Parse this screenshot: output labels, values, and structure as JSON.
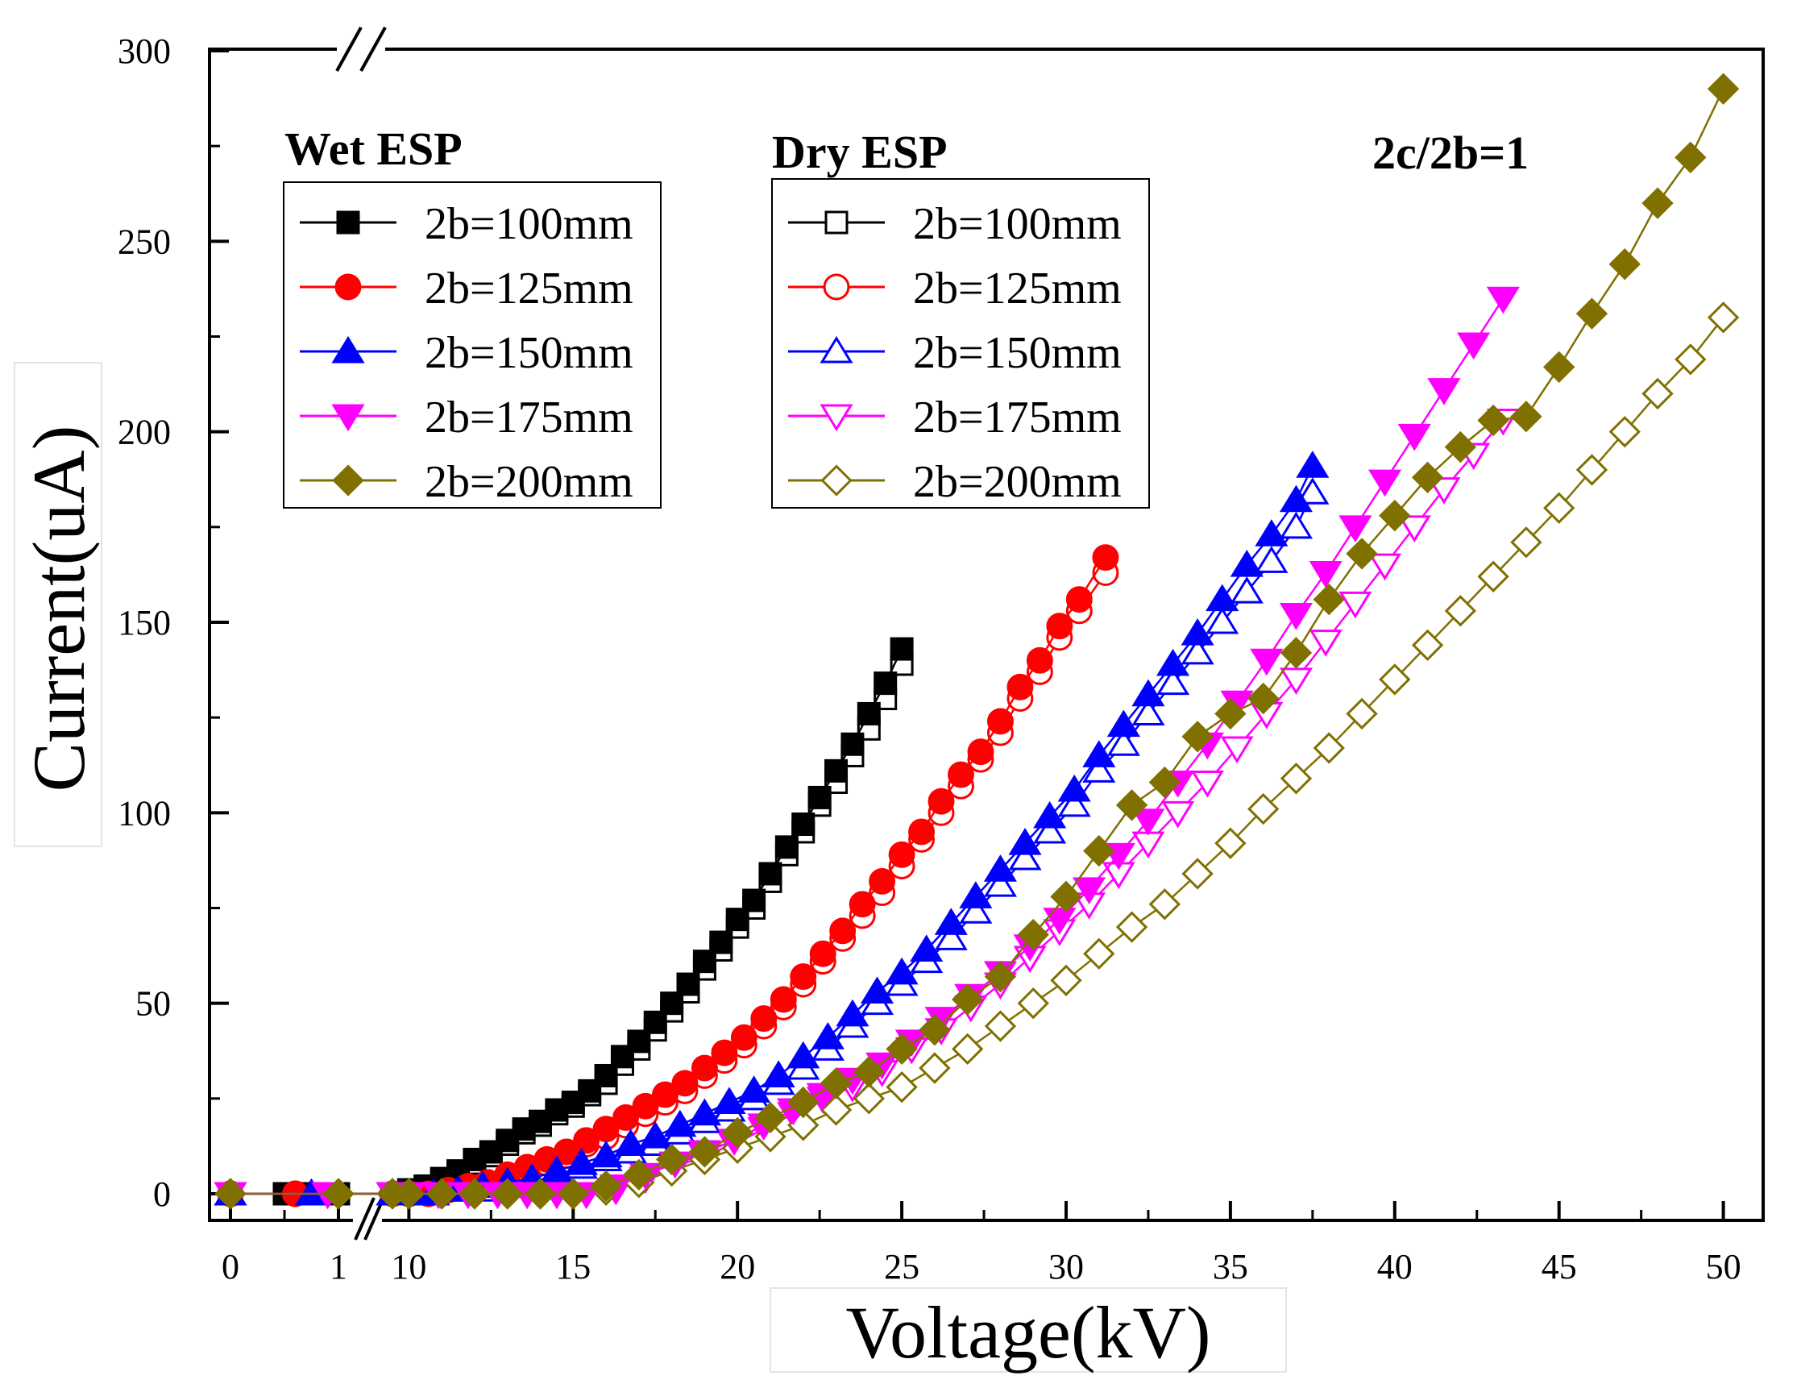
{
  "chart_data": {
    "type": "scatter",
    "title": "",
    "annotation": "2c/2b=1",
    "xlabel": "Voltage(kV)",
    "ylabel": "Current(uA)",
    "ylim": [
      0,
      300
    ],
    "xlim": [
      -0.1,
      51.5
    ],
    "x_axis_break": {
      "between": [
        1,
        10
      ],
      "style": "double-slash"
    },
    "y_ticks": [
      0,
      50,
      100,
      150,
      200,
      250,
      300
    ],
    "x_ticks": [
      0,
      1,
      10,
      15,
      20,
      25,
      30,
      35,
      40,
      45,
      50
    ],
    "x_tick_labels": [
      "0",
      "1",
      "10",
      "15",
      "20",
      "25",
      "30",
      "35",
      "40",
      "45",
      "50"
    ],
    "legend_groups": [
      {
        "title": "Wet ESP",
        "fill": "filled",
        "location": "top-left"
      },
      {
        "title": "Dry ESP",
        "fill": "open",
        "location": "top-center"
      }
    ],
    "series": [
      {
        "name": "2b=100mm",
        "group": "Wet ESP",
        "marker": "square",
        "filled": true,
        "color": "#000000",
        "x": [
          0,
          0.5,
          0.7,
          1,
          9.5,
          10,
          10.5,
          11,
          11.5,
          12,
          12.5,
          13,
          13.5,
          14,
          14.5,
          15,
          15.5,
          16,
          16.5,
          17,
          17.5,
          18,
          18.5,
          19,
          19.5,
          20,
          20.5,
          21,
          21.5,
          22,
          22.5,
          23,
          23.5,
          24,
          24.5,
          25
        ],
        "y": [
          0,
          0,
          0,
          0,
          0,
          1,
          2,
          4,
          6,
          9,
          11,
          14,
          17,
          19,
          22,
          24,
          27,
          31,
          36,
          40,
          45,
          50,
          55,
          61,
          66,
          72,
          77,
          84,
          91,
          97,
          104,
          111,
          118,
          126,
          134,
          143
        ]
      },
      {
        "name": "2b=100mm",
        "group": "Dry ESP",
        "marker": "square",
        "filled": false,
        "color": "#000000",
        "x": [
          0,
          0.5,
          0.7,
          1,
          9.5,
          10,
          10.5,
          11,
          11.5,
          12,
          12.5,
          13,
          13.5,
          14,
          14.5,
          15,
          15.5,
          16,
          16.5,
          17,
          17.5,
          18,
          18.5,
          19,
          19.5,
          20,
          20.5,
          21,
          21.5,
          22,
          22.5,
          23,
          23.5,
          24,
          24.5,
          25
        ],
        "y": [
          0,
          0,
          0,
          0,
          0,
          1,
          2,
          3,
          5,
          8,
          10,
          13,
          16,
          18,
          21,
          23,
          26,
          29,
          34,
          38,
          43,
          48,
          53,
          59,
          64,
          70,
          75,
          82,
          89,
          95,
          102,
          108,
          115,
          122,
          130,
          139
        ]
      },
      {
        "name": "2b=125mm",
        "group": "Wet ESP",
        "marker": "circle",
        "filled": true,
        "color": "#ff0000",
        "x": [
          0,
          0.6,
          9.5,
          10,
          10.6,
          11.2,
          11.8,
          12.4,
          13,
          13.6,
          14.2,
          14.8,
          15.4,
          16,
          16.6,
          17.2,
          17.8,
          18.4,
          19,
          19.6,
          20.2,
          20.8,
          21.4,
          22,
          22.6,
          23.2,
          23.8,
          24.4,
          25,
          25.6,
          26.2,
          26.8,
          27.4,
          28,
          28.6,
          29.2,
          29.8,
          30.4,
          31.2
        ],
        "y": [
          0,
          0,
          0,
          0,
          0,
          1,
          2,
          3,
          5,
          7,
          9,
          11,
          14,
          17,
          20,
          23,
          26,
          29,
          33,
          37,
          41,
          46,
          51,
          57,
          63,
          69,
          76,
          82,
          89,
          95,
          103,
          110,
          116,
          124,
          133,
          140,
          149,
          156,
          167
        ]
      },
      {
        "name": "2b=125mm",
        "group": "Dry ESP",
        "marker": "circle",
        "filled": false,
        "color": "#ff0000",
        "x": [
          0,
          0.6,
          9.5,
          10,
          10.6,
          11.2,
          11.8,
          12.4,
          13,
          13.6,
          14.2,
          14.8,
          15.4,
          16,
          16.6,
          17.2,
          17.8,
          18.4,
          19,
          19.6,
          20.2,
          20.8,
          21.4,
          22,
          22.6,
          23.2,
          23.8,
          24.4,
          25,
          25.6,
          26.2,
          26.8,
          27.4,
          28,
          28.6,
          29.2,
          29.8,
          30.4,
          31.2
        ],
        "y": [
          0,
          0,
          0,
          0,
          0,
          1,
          2,
          2,
          4,
          6,
          8,
          10,
          13,
          15,
          18,
          21,
          24,
          27,
          31,
          35,
          39,
          44,
          49,
          55,
          61,
          67,
          73,
          79,
          86,
          93,
          100,
          107,
          114,
          121,
          130,
          137,
          146,
          153,
          163
        ]
      },
      {
        "name": "2b=150mm",
        "group": "Wet ESP",
        "marker": "triangle-up",
        "filled": true,
        "color": "#0000ff",
        "x": [
          0,
          0.75,
          9.5,
          10,
          10.75,
          11.5,
          12.25,
          13,
          13.75,
          14.5,
          15.25,
          16,
          16.75,
          17.5,
          18.25,
          19,
          19.75,
          20.5,
          21.25,
          22,
          22.75,
          23.5,
          24.25,
          25,
          25.75,
          26.5,
          27.25,
          28,
          28.75,
          29.5,
          30.25,
          31,
          31.75,
          32.5,
          33.25,
          34,
          34.75,
          35.5,
          36.25,
          37,
          37.5
        ],
        "y": [
          0,
          0,
          0,
          0,
          0,
          1,
          2,
          3,
          4,
          6,
          8,
          10,
          13,
          15,
          18,
          21,
          24,
          27,
          31,
          36,
          41,
          47,
          53,
          58,
          64,
          71,
          78,
          85,
          92,
          99,
          106,
          115,
          123,
          131,
          139,
          147,
          156,
          165,
          173,
          182,
          191
        ]
      },
      {
        "name": "2b=150mm",
        "group": "Dry ESP",
        "marker": "triangle-up",
        "filled": false,
        "color": "#0000ff",
        "x": [
          0,
          0.75,
          9.5,
          10,
          10.75,
          11.5,
          12.25,
          13,
          13.75,
          14.5,
          15.25,
          16,
          16.75,
          17.5,
          18.25,
          19,
          19.75,
          20.5,
          21.25,
          22,
          22.75,
          23.5,
          24.25,
          25,
          25.75,
          26.5,
          27.25,
          28,
          28.75,
          29.5,
          30.25,
          31,
          31.75,
          32.5,
          33.25,
          34,
          34.75,
          35.5,
          36.25,
          37,
          37.5
        ],
        "y": [
          0,
          0,
          0,
          0,
          0,
          1,
          1,
          2,
          3,
          5,
          7,
          9,
          11,
          13,
          16,
          19,
          22,
          25,
          29,
          33,
          38,
          44,
          50,
          55,
          61,
          67,
          74,
          81,
          88,
          95,
          102,
          111,
          118,
          126,
          134,
          142,
          150,
          158,
          166,
          175,
          184
        ]
      },
      {
        "name": "2b=175mm",
        "group": "Wet ESP",
        "marker": "triangle-down",
        "filled": true,
        "color": "#ff00ff",
        "x": [
          0,
          0.9,
          9.5,
          10,
          10.9,
          11.8,
          12.7,
          13.6,
          14.5,
          15.4,
          16.3,
          17.2,
          18.1,
          19,
          19.9,
          20.8,
          21.7,
          22.6,
          23.5,
          24.4,
          25.3,
          26.2,
          27.1,
          28,
          28.9,
          29.8,
          30.7,
          31.6,
          32.5,
          33.4,
          34.3,
          35.2,
          36.1,
          37,
          37.9,
          38.8,
          39.7,
          40.6,
          41.5,
          42.4,
          43.3
        ],
        "y": [
          0,
          0,
          0,
          0,
          0,
          0,
          0,
          0,
          0,
          0,
          2,
          5,
          8,
          11,
          14,
          18,
          22,
          26,
          30,
          34,
          40,
          46,
          52,
          58,
          65,
          72,
          80,
          89,
          98,
          108,
          118,
          129,
          140,
          152,
          163,
          175,
          187,
          199,
          211,
          223,
          235
        ]
      },
      {
        "name": "2b=175mm",
        "group": "Dry ESP",
        "marker": "triangle-down",
        "filled": false,
        "color": "#ff00ff",
        "x": [
          0,
          0.9,
          9.5,
          10,
          10.9,
          11.8,
          12.7,
          13.6,
          14.5,
          15.4,
          16.3,
          17.2,
          18.1,
          19,
          19.9,
          20.8,
          21.7,
          22.6,
          23.5,
          24.4,
          25.3,
          26.2,
          27.1,
          28,
          28.9,
          29.8,
          30.7,
          31.6,
          32.5,
          33.4,
          34.3,
          35.2,
          36.1,
          37,
          37.9,
          38.8,
          39.7,
          40.6,
          41.5,
          42.4,
          43.3
        ],
        "y": [
          0,
          0,
          0,
          0,
          0,
          0,
          0,
          0,
          0,
          0,
          1,
          4,
          7,
          10,
          13,
          17,
          21,
          25,
          28,
          32,
          38,
          43,
          49,
          55,
          62,
          69,
          76,
          84,
          92,
          100,
          108,
          117,
          126,
          135,
          145,
          155,
          165,
          175,
          185,
          194,
          203
        ]
      },
      {
        "name": "2b=200mm",
        "group": "Wet ESP",
        "marker": "diamond",
        "filled": true,
        "color": "#807000",
        "x": [
          0,
          1,
          9.5,
          10,
          11,
          12,
          13,
          14,
          15,
          16,
          17,
          18,
          19,
          20,
          21,
          22,
          23,
          24,
          25,
          26,
          27,
          28,
          29,
          30,
          31,
          32,
          33,
          34,
          35,
          36,
          37,
          38,
          39,
          40,
          41,
          42,
          43,
          44,
          45,
          46,
          47,
          48,
          49,
          50
        ],
        "y": [
          0,
          0,
          0,
          0,
          0,
          0,
          0,
          0,
          0,
          2,
          5,
          9,
          11,
          16,
          20,
          24,
          29,
          32,
          38,
          43,
          51,
          57,
          68,
          78,
          90,
          102,
          108,
          120,
          126,
          130,
          142,
          156,
          168,
          178,
          188,
          196,
          203,
          204,
          217,
          231,
          244,
          260,
          272,
          290
        ]
      },
      {
        "name": "2b=200mm",
        "group": "Dry ESP",
        "marker": "diamond",
        "filled": false,
        "color": "#807000",
        "x": [
          0,
          1,
          9.5,
          10,
          11,
          12,
          13,
          14,
          15,
          16,
          17,
          18,
          19,
          20,
          21,
          22,
          23,
          24,
          25,
          26,
          27,
          28,
          29,
          30,
          31,
          32,
          33,
          34,
          35,
          36,
          37,
          38,
          39,
          40,
          41,
          42,
          43,
          44,
          45,
          46,
          47,
          48,
          49,
          50
        ],
        "y": [
          0,
          0,
          0,
          0,
          0,
          0,
          0,
          0,
          0,
          1,
          3,
          6,
          9,
          12,
          15,
          18,
          22,
          25,
          28,
          33,
          38,
          44,
          50,
          56,
          63,
          70,
          76,
          84,
          92,
          101,
          109,
          117,
          126,
          135,
          144,
          153,
          162,
          171,
          180,
          190,
          200,
          210,
          219,
          230
        ]
      }
    ]
  }
}
